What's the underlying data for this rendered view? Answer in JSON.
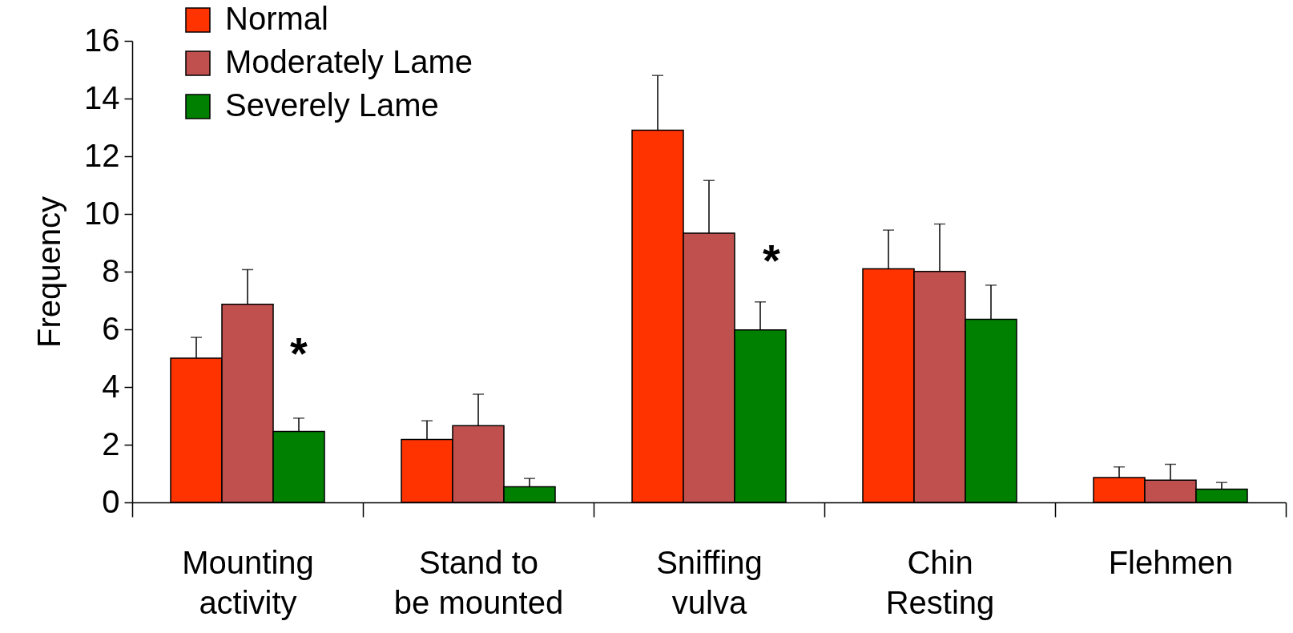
{
  "chart_data": {
    "type": "bar",
    "ylabel": "Frequency",
    "categories": [
      "Mounting\nactivity",
      "Stand to\nbe mounted",
      "Sniffing\nvulva",
      "Chin\nResting",
      "Flehmen"
    ],
    "series": [
      {
        "name": "Normal",
        "color": "#ff3300",
        "values": [
          5.0,
          2.18,
          12.9,
          8.1,
          0.86
        ],
        "errors": [
          [
            5.0,
            5.72
          ],
          [
            2.18,
            2.83
          ],
          [
            12.9,
            14.8
          ],
          [
            8.1,
            9.44
          ],
          [
            0.86,
            1.23
          ]
        ]
      },
      {
        "name": "Moderately Lame",
        "color": "#c0504d",
        "values": [
          6.87,
          2.66,
          9.33,
          8.01,
          0.77
        ],
        "errors": [
          [
            6.87,
            8.07
          ],
          [
            2.66,
            3.75
          ],
          [
            9.33,
            11.16
          ],
          [
            8.01,
            9.65
          ],
          [
            0.77,
            1.32
          ]
        ]
      },
      {
        "name": "Severely Lame",
        "color": "#008000",
        "values": [
          2.46,
          0.54,
          5.98,
          6.35,
          0.46
        ],
        "errors": [
          [
            2.46,
            2.92
          ],
          [
            0.54,
            0.83
          ],
          [
            5.98,
            6.95
          ],
          [
            6.35,
            7.53
          ],
          [
            0.46,
            0.69
          ]
        ]
      }
    ],
    "ylim": [
      0,
      16
    ],
    "yticks": [
      0,
      2,
      4,
      6,
      8,
      10,
      12,
      14,
      16
    ],
    "grid": false,
    "legend": "top left",
    "annotations": [
      "*",
      "*"
    ]
  }
}
